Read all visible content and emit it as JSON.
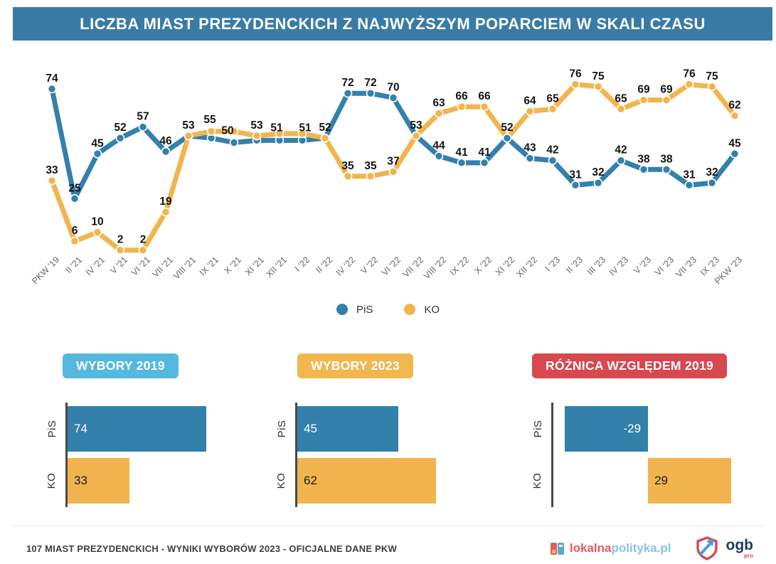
{
  "header": {
    "title": "LICZBA MIAST PREZYDENCKICH Z NAJWYŻSZYM POPARCIEM W SKALI CZASU",
    "bg_color": "#3A7BA6"
  },
  "theme": {
    "pis_blue": "#3380AB",
    "ko_orange": "#F2B44E",
    "badge_blue": "#54B8DF",
    "badge_orange": "#F2B64F",
    "badge_red": "#D8484F",
    "axis_gray": "#4a4a4a"
  },
  "chart_data": [
    {
      "type": "line",
      "title": "LICZBA MIAST PREZYDENCKICH Z NAJWYŻSZYM POPARCIEM W SKALI CZASU",
      "x": [
        "PKW '19",
        "II '21",
        "IV '21",
        "V '21",
        "VI '21",
        "VII '21",
        "VIII '21",
        "IX '21",
        "X '21",
        "XI '21",
        "XII '21",
        "I '22",
        "II '22",
        "IV '22",
        "V '22",
        "VI '22",
        "VII '22",
        "VIII '22",
        "IX '22",
        "X '22",
        "XI '22",
        "XII '22",
        "I '23",
        "II '23",
        "III '23",
        "IV '23",
        "V '23",
        "VI '23",
        "VII '23",
        "IX '23",
        "PKW '23"
      ],
      "ylim": [
        0,
        80
      ],
      "grid": false,
      "legend_position": "bottom-center",
      "series": [
        {
          "name": "PiS",
          "color": "#3380AB",
          "values": [
            74,
            25,
            45,
            52,
            57,
            46,
            53,
            52,
            50,
            51,
            51,
            51,
            52,
            72,
            72,
            70,
            53,
            44,
            41,
            41,
            52,
            43,
            42,
            31,
            32,
            42,
            38,
            38,
            31,
            32,
            45
          ],
          "point_labels": [
            "74",
            "25",
            "45",
            "52",
            "57",
            "46",
            null,
            null,
            "50",
            null,
            "51",
            "51",
            null,
            "72",
            "72",
            "70",
            null,
            "44",
            "41",
            "41",
            "52",
            "43",
            "42",
            "31",
            "32",
            "42",
            "38",
            "38",
            "31",
            "32",
            "45"
          ]
        },
        {
          "name": "KO",
          "color": "#F2B44E",
          "values": [
            33,
            6,
            10,
            2,
            2,
            19,
            53,
            55,
            55,
            53,
            54,
            54,
            52,
            35,
            35,
            37,
            53,
            63,
            66,
            66,
            52,
            64,
            65,
            76,
            75,
            65,
            69,
            69,
            76,
            75,
            62
          ],
          "point_labels": [
            "33",
            "6",
            "10",
            "2",
            "2",
            "19",
            "53",
            "55",
            null,
            "53",
            null,
            null,
            "52",
            "35",
            "35",
            "37",
            "53",
            "63",
            "66",
            "66",
            null,
            "64",
            "65",
            "76",
            "75",
            "65",
            "69",
            "69",
            "76",
            "75",
            "62"
          ]
        }
      ]
    },
    {
      "type": "bar",
      "title": "WYBORY 2019",
      "badge_color": "#54B8DF",
      "categories": [
        "PiS",
        "KO"
      ],
      "values": [
        74,
        33
      ],
      "value_labels": [
        "74",
        "33"
      ],
      "bar_colors": [
        "#3380AB",
        "#F2B44E"
      ],
      "label_colors": [
        "#ffffff",
        "#1b1b1b"
      ],
      "label_align": [
        "left",
        "left"
      ],
      "xlim": [
        0,
        74
      ]
    },
    {
      "type": "bar",
      "title": "WYBORY 2023",
      "badge_color": "#F2B64F",
      "categories": [
        "PiS",
        "KO"
      ],
      "values": [
        45,
        62
      ],
      "value_labels": [
        "45",
        "62"
      ],
      "bar_colors": [
        "#3380AB",
        "#F2B44E"
      ],
      "label_colors": [
        "#ffffff",
        "#1b1b1b"
      ],
      "label_align": [
        "left",
        "left"
      ],
      "xlim": [
        0,
        62
      ]
    },
    {
      "type": "bar",
      "title": "RÓŻNICA WZGLĘDEM 2019",
      "badge_color": "#D8484F",
      "categories": [
        "PiS",
        "KO"
      ],
      "values": [
        -29,
        29
      ],
      "value_labels": [
        "-29",
        "29"
      ],
      "bar_colors": [
        "#3380AB",
        "#F2B44E"
      ],
      "label_colors": [
        "#ffffff",
        "#1b1b1b"
      ],
      "label_align": [
        "right",
        "left"
      ],
      "xlim": [
        -33,
        29
      ]
    }
  ],
  "legend": {
    "items": [
      {
        "label": "PiS",
        "color": "#3380AB"
      },
      {
        "label": "KO",
        "color": "#F2B44E"
      }
    ]
  },
  "footer": {
    "note": "107 MIAST PREZYDENCKICH - WYNIKI WYBORÓW 2023 - OFICJALNE DANE PKW",
    "lokalna": "lokalna",
    "polityka": "polityka.pl",
    "ogb": "ogb",
    "ogb_sub": "pro"
  }
}
